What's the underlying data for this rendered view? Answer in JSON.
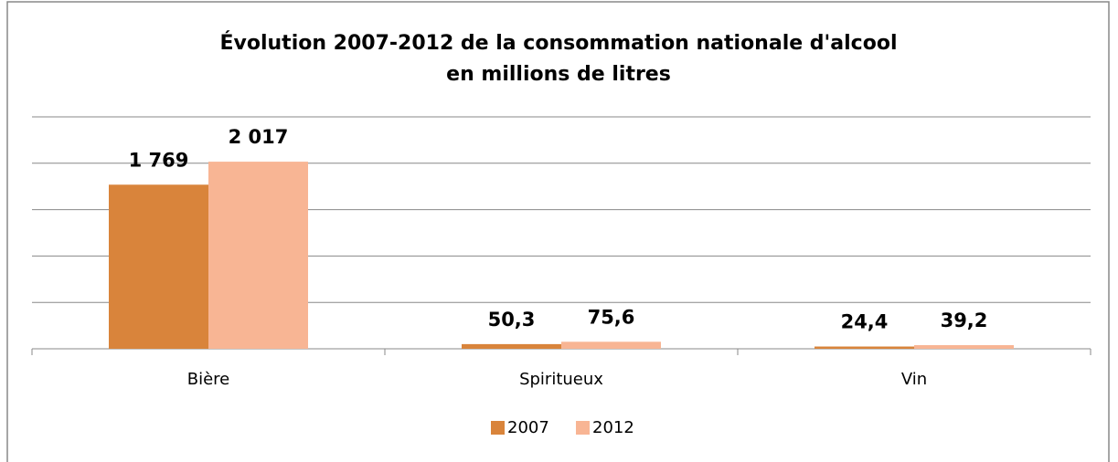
{
  "chart_data": {
    "type": "bar",
    "title": "Évolution 2007-2012 de la consommation nationale d'alcool",
    "subtitle": "en millions de litres",
    "categories": [
      "Bière",
      "Spiritueux",
      "Vin"
    ],
    "series": [
      {
        "name": "2007",
        "color": "#d9843b",
        "values": [
          1769,
          50.3,
          24.4
        ],
        "value_labels": [
          "1 769",
          "50,3",
          "24,4"
        ]
      },
      {
        "name": "2012",
        "color": "#f8b594",
        "values": [
          2017,
          75.6,
          39.2
        ],
        "value_labels": [
          "2 017",
          "75,6",
          "39,2"
        ]
      }
    ],
    "ylim": [
      0,
      2500
    ],
    "yticks": [
      0,
      500,
      1000,
      1500,
      2000,
      2500
    ],
    "grid": true,
    "legend": "bottom"
  }
}
